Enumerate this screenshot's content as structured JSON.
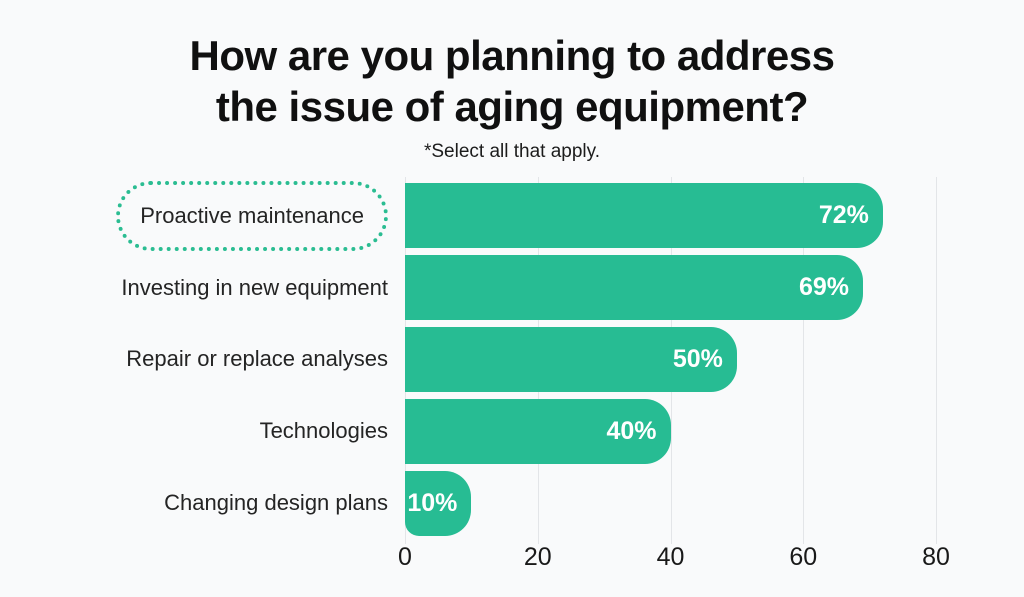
{
  "header": {
    "title_line1": "How are you planning to address",
    "title_line2": "the issue of aging equipment?",
    "subtitle": "*Select all that apply."
  },
  "chart_data": {
    "type": "bar",
    "orientation": "horizontal",
    "title": "How are you planning to address the issue of aging equipment?",
    "subtitle": "*Select all that apply.",
    "categories": [
      "Proactive maintenance",
      "Investing in new equipment",
      "Repair or replace analyses",
      "Technologies",
      "Changing design plans"
    ],
    "values": [
      72,
      69,
      50,
      40,
      10
    ],
    "value_labels": [
      "72%",
      "69%",
      "50%",
      "40%",
      "10%"
    ],
    "x_ticks": [
      "0",
      "20",
      "40",
      "60",
      "80"
    ],
    "x_tick_values": [
      0,
      20,
      40,
      60,
      80
    ],
    "xlim": [
      0,
      80
    ],
    "grid": true,
    "legend": false,
    "highlighted_category_index": 0,
    "colors": {
      "bar": "#27bc93",
      "value_label": "#ffffff",
      "highlight_outline": "#2bbd92",
      "gridline": "#e3e5e8",
      "background": "#f9fafb",
      "text": "#101010"
    }
  }
}
